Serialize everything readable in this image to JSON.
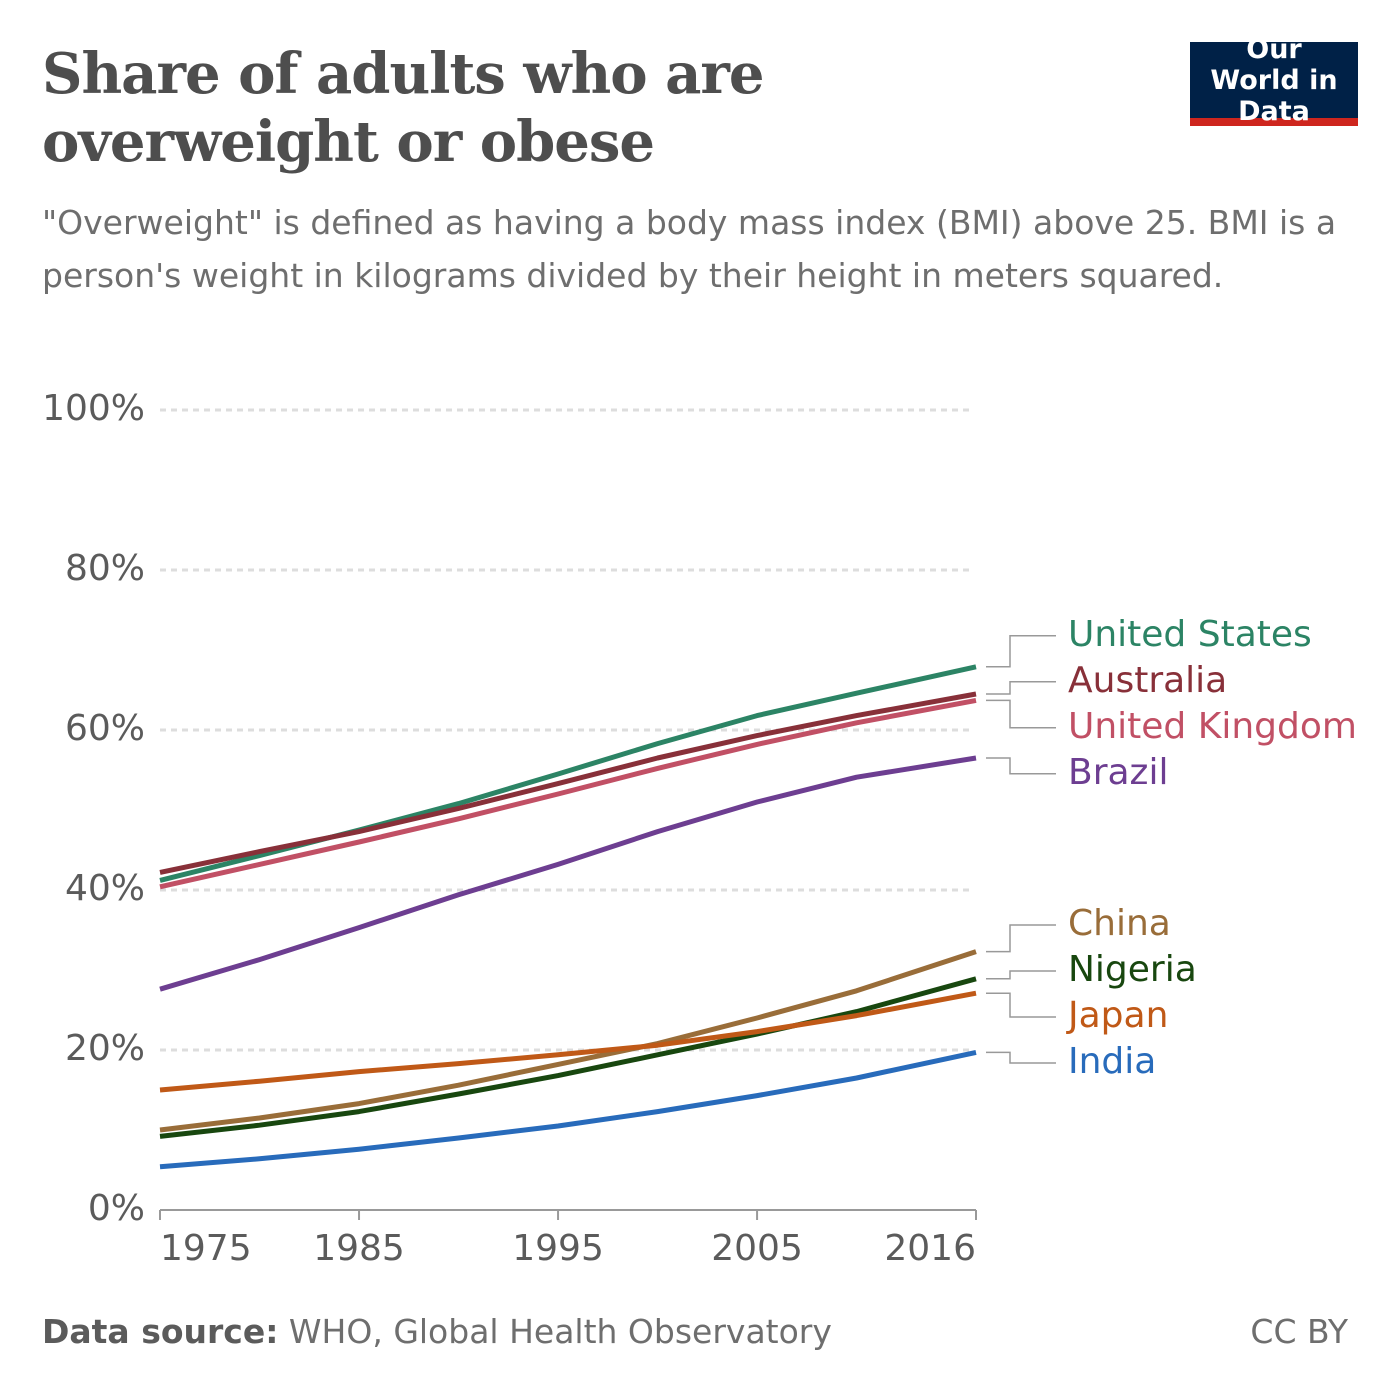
{
  "chart_data": {
    "type": "line",
    "title": "Share of adults who are overweight or obese",
    "subtitle": "\"Overweight\" is defined as having a body mass index (BMI) above 25. BMI is a person's weight in kilograms divided by their height in meters squared.",
    "logo": "Our World in Data",
    "source_label": "Data source:",
    "source": "WHO, Global Health Observatory",
    "license": "CC BY",
    "x": [
      1975,
      1980,
      1985,
      1990,
      1995,
      2000,
      2005,
      2010,
      2016
    ],
    "xlim": [
      1975,
      2016
    ],
    "xticks": [
      1975,
      1985,
      1995,
      2005,
      2016
    ],
    "ylim": [
      0,
      100
    ],
    "yticks": [
      {
        "value": 0,
        "label": "0%"
      },
      {
        "value": 20,
        "label": "20%"
      },
      {
        "value": 40,
        "label": "40%"
      },
      {
        "value": 60,
        "label": "60%"
      },
      {
        "value": 80,
        "label": "80%"
      },
      {
        "value": 100,
        "label": "100%"
      }
    ],
    "grid": true,
    "series": [
      {
        "name": "United States",
        "color": "#2c8465",
        "values": [
          41.2,
          44.3,
          47.5,
          50.8,
          54.5,
          58.3,
          61.8,
          64.6,
          67.9
        ]
      },
      {
        "name": "Australia",
        "color": "#883039",
        "values": [
          42.2,
          44.8,
          47.3,
          50.2,
          53.3,
          56.5,
          59.3,
          61.8,
          64.5
        ]
      },
      {
        "name": "United Kingdom",
        "color": "#c15065",
        "values": [
          40.4,
          43.2,
          46.0,
          48.9,
          52.0,
          55.2,
          58.2,
          60.9,
          63.7
        ]
      },
      {
        "name": "Brazil",
        "color": "#6d3e91",
        "values": [
          27.6,
          31.3,
          35.3,
          39.4,
          43.2,
          47.3,
          51.0,
          54.1,
          56.5
        ]
      },
      {
        "name": "China",
        "color": "#996d39",
        "values": [
          10.0,
          11.5,
          13.3,
          15.6,
          18.2,
          20.8,
          24.0,
          27.4,
          32.3
        ]
      },
      {
        "name": "Nigeria",
        "color": "#18470f",
        "values": [
          9.2,
          10.6,
          12.3,
          14.5,
          16.8,
          19.4,
          22.0,
          24.8,
          28.9
        ]
      },
      {
        "name": "Japan",
        "color": "#c05917",
        "values": [
          15.0,
          16.1,
          17.3,
          18.3,
          19.4,
          20.6,
          22.3,
          24.3,
          27.1
        ]
      },
      {
        "name": "India",
        "color": "#286bbb",
        "values": [
          5.4,
          6.4,
          7.6,
          9.0,
          10.5,
          12.3,
          14.3,
          16.5,
          19.7
        ]
      }
    ]
  }
}
